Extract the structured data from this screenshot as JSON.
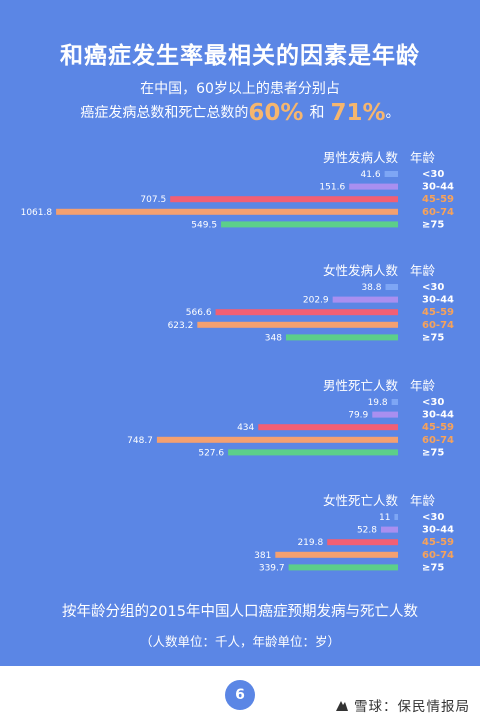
{
  "header": {
    "title": "和癌症发生率最相关的因素是年龄",
    "subtitle_line1": "在中国，60岁以上的患者分别占",
    "subtitle_line2_prefix": "癌症发病总数和死亡总数的",
    "incidence_share": "60%",
    "and_word": "和",
    "death_share": "71%",
    "suffix": "。"
  },
  "chart_data": {
    "type": "bar",
    "orientation": "horizontal",
    "title": "按年龄分组的2015年中国人口癌症预期发病与死亡人数",
    "units_note": "（人数单位：千人，年龄单位：岁）",
    "age_column_label": "年龄",
    "categories": [
      "<30",
      "30-44",
      "45-59",
      "60-74",
      "≥75"
    ],
    "colors": [
      "#7ea6f5",
      "#a98ff0",
      "#f25f74",
      "#f4a070",
      "#5ccf8a"
    ],
    "label_colors": [
      "#ffffff",
      "#ffffff",
      "#f7a25a",
      "#f7a25a",
      "#ffffff"
    ],
    "groups": [
      {
        "name": "男性发病人数",
        "values": [
          41.6,
          151.6,
          707.5,
          1061.8,
          549.5
        ]
      },
      {
        "name": "女性发病人数",
        "values": [
          38.8,
          202.9,
          566.6,
          623.2,
          348
        ]
      },
      {
        "name": "男性死亡人数",
        "values": [
          19.8,
          79.9,
          434,
          748.7,
          527.6
        ]
      },
      {
        "name": "女性死亡人数",
        "values": [
          11,
          52.8,
          219.8,
          381,
          339.7
        ]
      }
    ],
    "display_values": [
      [
        "41.6",
        "151.6",
        "707.5",
        "1061.8",
        "549.5"
      ],
      [
        "38.8",
        "202.9",
        "566.6",
        "623.2",
        "348"
      ],
      [
        "19.8",
        "79.9",
        "434",
        "748.7",
        "527.6"
      ],
      [
        "11",
        "52.8",
        "219.8",
        "381",
        "339.7"
      ]
    ]
  },
  "footer": {
    "page_number": "6",
    "watermark": "雪球：保民情报局"
  }
}
